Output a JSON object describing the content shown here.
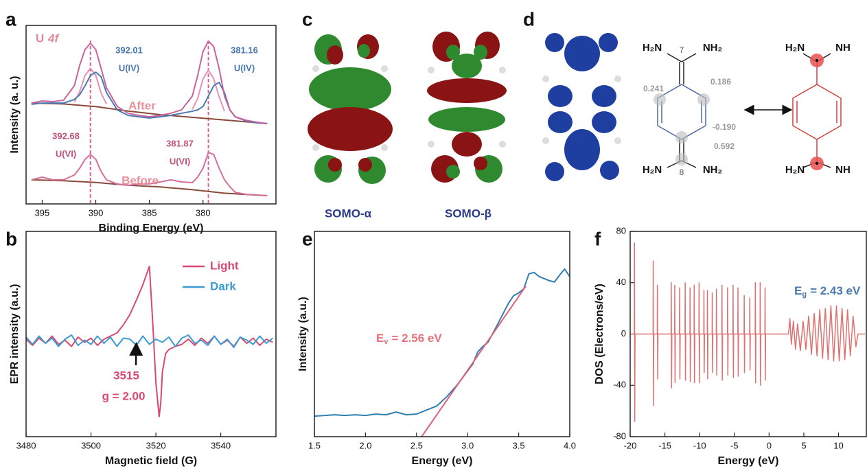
{
  "chart_data": [
    {
      "type": "line",
      "panel": "a",
      "title": "U",
      "title_italic": "4f",
      "xlabel": "Binding Energy (eV)",
      "ylabel": "Intensity (a. u.)",
      "xlim": [
        396.5,
        373.2
      ],
      "xticks": [
        395,
        390,
        385,
        380
      ],
      "ylim": [
        0,
        10
      ],
      "x": [
        396,
        395,
        394,
        393,
        392,
        391.5,
        391,
        390.5,
        390,
        389.5,
        389,
        388,
        387,
        386,
        385,
        384,
        383,
        382,
        381,
        380.5,
        380,
        379.5,
        379,
        378.5,
        378,
        377.5,
        377,
        376,
        375,
        374
      ],
      "series": [
        {
          "color": "#8a4a3a",
          "x": [
            396,
            393,
            390,
            387,
            384,
            381,
            378,
            374
          ],
          "values": [
            5.65,
            5.6,
            5.45,
            5.2,
            5.0,
            4.85,
            4.7,
            4.5
          ]
        },
        {
          "color": "#e890b0",
          "x": [
            392,
            391.5,
            391,
            390.5,
            390,
            389.5,
            389,
            385,
            381,
            380.5,
            380,
            379.5,
            379,
            378.5,
            378
          ],
          "values": [
            5.7,
            6.3,
            7.2,
            7.6,
            7.2,
            6.2,
            5.6,
            null,
            5.3,
            5.9,
            7.0,
            7.5,
            7.0,
            6.0,
            5.2
          ]
        },
        {
          "color": "#4a78b0",
          "values": [
            5.58,
            5.65,
            5.65,
            5.65,
            5.85,
            6.12,
            6.62,
            7.19,
            7.38,
            7.12,
            6.23,
            5.27,
            4.96,
            4.88,
            4.81,
            4.88,
            4.96,
            5.08,
            5.19,
            5.27,
            5.46,
            6.04,
            6.62,
            6.81,
            6.23,
            5.27,
            4.88,
            4.65,
            4.54,
            4.5
          ]
        },
        {
          "color": "#c8649a",
          "values": [
            5.65,
            5.77,
            5.73,
            5.81,
            6.62,
            7.77,
            8.65,
            9.0,
            8.65,
            7.58,
            6.5,
            5.46,
            5.08,
            4.96,
            4.88,
            4.96,
            5.08,
            5.27,
            6.04,
            7.19,
            8.54,
            9.12,
            8.81,
            7.58,
            6.04,
            5.27,
            4.88,
            4.69,
            4.58,
            4.5
          ]
        },
        {
          "color": "#8a4a3a",
          "x": [
            396,
            393,
            390,
            387,
            384,
            381,
            378,
            374
          ],
          "values": [
            1.35,
            1.3,
            1.2,
            1.05,
            0.95,
            0.8,
            0.6,
            0.46
          ]
        },
        {
          "color": "#d4709a",
          "values": [
            1.35,
            1.5,
            1.35,
            1.35,
            1.62,
            2.0,
            2.5,
            2.77,
            2.5,
            1.81,
            1.35,
            1.12,
            1.04,
            1.12,
            1.12,
            1.23,
            1.35,
            1.23,
            1.19,
            1.5,
            2.0,
            2.88,
            2.77,
            2.0,
            1.35,
            0.96,
            0.65,
            0.54,
            0.5,
            0.46
          ]
        }
      ],
      "reference_lines": [
        390.5,
        379.5
      ],
      "reference_color": "#d9609a",
      "peaks": [
        {
          "value": 392.01,
          "label": "U(IV)",
          "color": "#4a78b0"
        },
        {
          "value": 381.16,
          "label": "U(IV)",
          "color": "#4a78b0"
        },
        {
          "value": 392.68,
          "label": "U(VI)",
          "color": "#c0507a"
        },
        {
          "value": 381.87,
          "label": "U(VI)",
          "color": "#c0507a"
        }
      ],
      "annotations": [
        "After",
        "Before"
      ],
      "annotation_color": "#e8909a",
      "title_color": "#e08a9a"
    },
    {
      "type": "line",
      "panel": "b",
      "xlabel": "Magnetic field (G)",
      "ylabel": "EPR intensity (a.u.)",
      "xlim": [
        3480,
        3557
      ],
      "xticks": [
        3480,
        3500,
        3520,
        3540
      ],
      "ylim": [
        -9.27,
        10.67
      ],
      "legend": "upper right",
      "series": [
        {
          "name": "Light",
          "color": "#d9496f",
          "x": [
            3480,
            3482,
            3484,
            3486,
            3488,
            3490,
            3492,
            3494,
            3496,
            3498,
            3500,
            3502,
            3504,
            3506,
            3508,
            3510,
            3512,
            3514,
            3516,
            3517,
            3518,
            3519,
            3519.5,
            3520,
            3521,
            3521.5,
            3522,
            3523,
            3524,
            3526,
            3528,
            3530,
            3532,
            3534,
            3536,
            3538,
            3540,
            3542,
            3544,
            3546,
            3548,
            3550,
            3552,
            3554,
            3556
          ],
          "values": [
            0.2,
            -0.4,
            0.3,
            -0.2,
            0.5,
            -0.3,
            0.1,
            -0.5,
            0.4,
            -0.1,
            0.3,
            -0.4,
            0.2,
            0.5,
            0.8,
            1.6,
            2.6,
            4.0,
            5.5,
            6.4,
            7.27,
            2.0,
            -1.0,
            -4.0,
            -7.33,
            -6.0,
            -3.0,
            -1.2,
            -0.8,
            -0.5,
            -0.3,
            0.2,
            -0.4,
            0.3,
            -0.2,
            0.5,
            -0.3,
            0.1,
            -0.5,
            0.4,
            -0.2,
            0.3,
            -0.4,
            0.2,
            -0.1
          ]
        },
        {
          "name": "Dark",
          "color": "#3b9bd2",
          "x": [
            3480,
            3482,
            3484,
            3486,
            3488,
            3490,
            3492,
            3494,
            3496,
            3498,
            3500,
            3502,
            3504,
            3506,
            3508,
            3510,
            3512,
            3514,
            3516,
            3518,
            3520,
            3522,
            3524,
            3526,
            3528,
            3530,
            3532,
            3534,
            3536,
            3538,
            3540,
            3542,
            3544,
            3546,
            3548,
            3550,
            3552,
            3554,
            3556
          ],
          "values": [
            0.4,
            -0.3,
            0.5,
            -0.2,
            0.3,
            -0.5,
            0.2,
            0.6,
            -0.4,
            0.1,
            -0.3,
            0.5,
            -0.2,
            0.4,
            -0.5,
            0.3,
            0.2,
            -0.4,
            0.5,
            -0.3,
            0.2,
            -0.1,
            0.4,
            -0.5,
            0.3,
            0.6,
            -0.2,
            0.1,
            -0.4,
            0.5,
            -0.3,
            0.2,
            -0.6,
            0.4,
            0.1,
            -0.3,
            0.5,
            -0.2,
            0.3
          ]
        }
      ],
      "marker": {
        "value": 3515,
        "label": "g = 2.00",
        "color": "#d9496f"
      }
    },
    {
      "type": "line",
      "panel": "e",
      "xlabel": "Energy (eV)",
      "ylabel": "Intensity (a.u.)",
      "xlim": [
        1.5,
        4.0
      ],
      "xticks": [
        1.5,
        {
          "value": 2,
          "label": "2.0"
        },
        2.5,
        {
          "value": 3,
          "label": "3.0"
        },
        3.5,
        {
          "value": 4,
          "label": "4.0"
        }
      ],
      "ylim": [
        0,
        30
      ],
      "series": [
        {
          "color": "#2f7fb0",
          "x": [
            1.5,
            1.6,
            1.7,
            1.8,
            1.9,
            2.0,
            2.1,
            2.2,
            2.3,
            2.4,
            2.5,
            2.6,
            2.7,
            2.8,
            2.9,
            3.0,
            3.05,
            3.1,
            3.15,
            3.2,
            3.3,
            3.4,
            3.45,
            3.5,
            3.55,
            3.6,
            3.65,
            3.7,
            3.8,
            3.85,
            3.9,
            3.95,
            4.0
          ],
          "values": [
            3.0,
            3.1,
            3.2,
            3.1,
            3.2,
            3.1,
            3.3,
            3.2,
            3.6,
            3.2,
            3.3,
            3.9,
            4.5,
            5.9,
            7.6,
            9.6,
            10.6,
            12.4,
            13.2,
            13.8,
            16.6,
            19.5,
            20.6,
            21.0,
            21.6,
            23.8,
            24.0,
            23.4,
            22.8,
            22.6,
            23.6,
            24.5,
            23.4
          ]
        },
        {
          "color": "#e0607a",
          "x": [
            2.55,
            3.57
          ],
          "values": [
            0,
            22
          ]
        }
      ],
      "label": {
        "main": "E",
        "sub": "v",
        "rest": "= 2.56 eV",
        "color": "#e8707a"
      }
    },
    {
      "type": "line",
      "panel": "f",
      "xlabel": "Energy (eV)",
      "ylabel": "DOS (Electrons/eV)",
      "xlim": [
        -20,
        14
      ],
      "xticks": [
        -20,
        -15,
        -10,
        -5,
        0,
        5,
        10
      ],
      "ylim": [
        -80,
        80
      ],
      "yticks": [
        -80,
        -40,
        0,
        40,
        80
      ],
      "series": [
        {
          "color": "#e07070",
          "x": [
            -20,
            -19.4,
            -19.38,
            -19.34,
            -19.3,
            -16.7,
            -16.68,
            -16.64,
            -16.6,
            -16.1,
            -16.08,
            -16.04,
            -16.0,
            -14.1,
            -14.08,
            -14.04,
            -14.0,
            -13.6,
            -13.58,
            -13.54,
            -13.5,
            -12.9,
            -12.88,
            -12.84,
            -12.8,
            -12.1,
            -12.08,
            -12.04,
            -12.0,
            -11.4,
            -11.38,
            -11.34,
            -11.3,
            -10.8,
            -10.78,
            -10.74,
            -10.7,
            -10.1,
            -10.08,
            -10.04,
            -10.0,
            -9.4,
            -9.38,
            -9.34,
            -9.3,
            -8.9,
            -8.88,
            -8.84,
            -8.8,
            -8.2,
            -8.18,
            -8.14,
            -8.1,
            -7.6,
            -7.58,
            -7.54,
            -7.5,
            -6.8,
            -6.78,
            -6.74,
            -6.7,
            -6.0,
            -5.98,
            -5.94,
            -5.9,
            -5.2,
            -5.18,
            -5.14,
            -5.1,
            -4.5,
            -4.48,
            -4.44,
            -4.4,
            -3.6,
            -3.58,
            -3.54,
            -3.5,
            -2.8,
            -2.78,
            -2.74,
            -2.7,
            -2.0,
            -1.98,
            -1.94,
            -1.9,
            -1.3,
            -1.28,
            -1.24,
            -1.2,
            -0.6,
            -0.58,
            -0.54,
            -0.5,
            2.8,
            3.0,
            3.2,
            3.5,
            3.8,
            4.1,
            4.5,
            4.9,
            5.3,
            5.7,
            6.1,
            6.5,
            6.9,
            7.3,
            7.7,
            8.1,
            8.5,
            8.9,
            9.3,
            9.7,
            10.1,
            10.5,
            10.9,
            11.3,
            11.7,
            12.1,
            12.5,
            12.8,
            13.8
          ],
          "values": [
            0,
            0,
            71,
            -68,
            0,
            0,
            57,
            -56,
            0,
            0,
            38,
            -35,
            0,
            0,
            40,
            -42,
            0,
            0,
            38,
            -38,
            0,
            0,
            36,
            -35,
            0,
            0,
            40,
            -36,
            0,
            0,
            36,
            -37,
            0,
            0,
            38,
            -38,
            0,
            0,
            40,
            -38,
            0,
            0,
            34,
            -30,
            0,
            0,
            34,
            -35,
            0,
            0,
            32,
            -30,
            0,
            0,
            35,
            -32,
            0,
            0,
            38,
            -36,
            0,
            0,
            36,
            -32,
            0,
            0,
            38,
            -34,
            0,
            0,
            36,
            -33,
            0,
            0,
            30,
            -30,
            0,
            0,
            28,
            -28,
            0,
            0,
            40,
            -38,
            0,
            0,
            40,
            -40,
            0,
            0,
            36,
            -36,
            0,
            0,
            12,
            -8,
            10,
            -12,
            8,
            -13,
            10,
            -12,
            14,
            -16,
            16,
            -17,
            19,
            -19,
            20,
            -20,
            22,
            -21,
            22,
            -21,
            20,
            -20,
            19,
            -17,
            14,
            -10,
            0,
            0
          ]
        }
      ],
      "label": {
        "main": "E",
        "sub": "g",
        "rest": "= 2.43 eV",
        "color": "#4a78b0"
      }
    }
  ],
  "orbitals": {
    "panel": "c",
    "labels": [
      "SOMO-α",
      "SOMO-β"
    ]
  },
  "spin_density": {
    "panel": "d",
    "left": {
      "groups": [
        "H₂N",
        "NH₂",
        "H₂N",
        "NH₂"
      ],
      "atoms": [
        "7",
        "8"
      ],
      "spin": [
        0.241,
        0.186,
        {
          "value": -0.19,
          "label": "-0.190"
        },
        0.592
      ]
    },
    "right": {
      "groups": [
        "H₂N",
        "NH",
        "H₂N",
        "NH"
      ]
    }
  }
}
